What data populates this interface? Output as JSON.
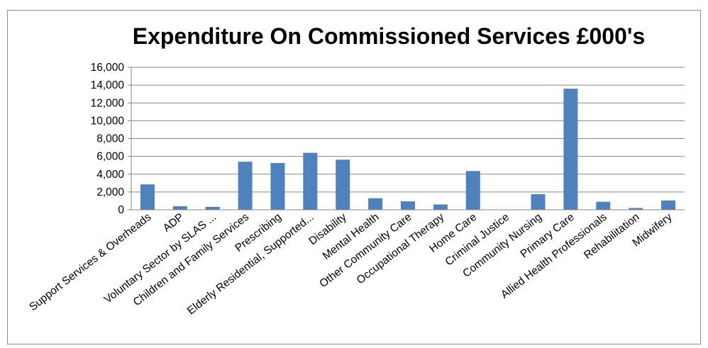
{
  "chart_data": {
    "type": "bar",
    "title": "Expenditure On Commissioned Services £000's",
    "xlabel": "",
    "ylabel": "",
    "ylim": [
      0,
      16000
    ],
    "yticks": [
      "0",
      "2,000",
      "4,000",
      "6,000",
      "8,000",
      "10,000",
      "12,000",
      "14,000",
      "16,000"
    ],
    "grid": true,
    "legend": "none",
    "categories": [
      "Support Services & Overheads",
      "ADP",
      "Voluntary Sector by SLAS ...",
      "Children and Family Services",
      "Prescribing",
      "Elderly Residential, Supported...",
      "Disability",
      "Mental Health",
      "Other Community Care",
      "Occupational Therapy",
      "Home Care",
      "Criminal Justice",
      "Community Nursing",
      "Primary Care",
      "Allied Health Professionals",
      "Rehabilitation",
      "Midwifery"
    ],
    "values": [
      2850,
      400,
      330,
      5400,
      5250,
      6400,
      5620,
      1300,
      950,
      600,
      4350,
      0,
      1750,
      13600,
      900,
      200,
      1050
    ],
    "colors": {
      "bar": "#4f81bd",
      "axis": "#868686"
    }
  }
}
